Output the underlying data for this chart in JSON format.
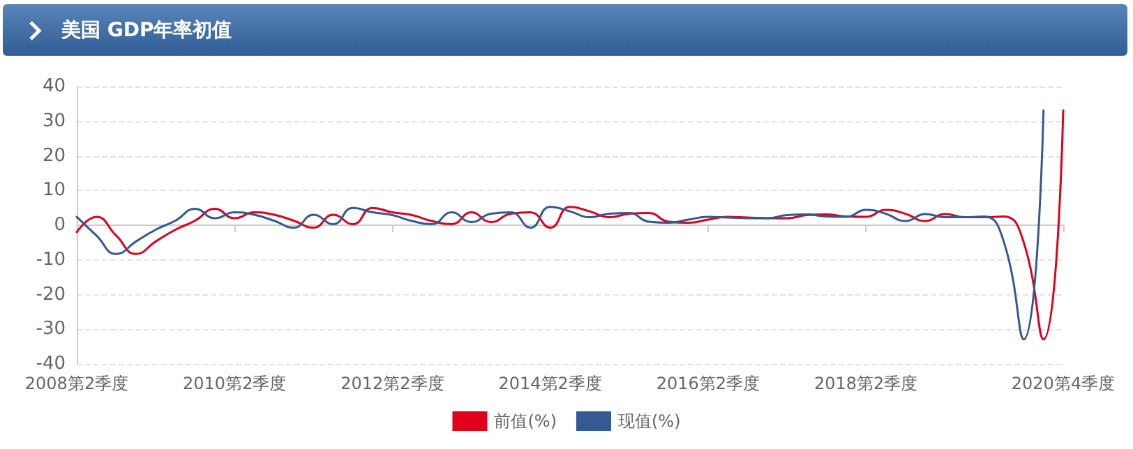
{
  "chart_data": {
    "type": "line",
    "title": "美国 GDP年率初值",
    "categories": [
      "2008第2季度",
      null,
      null,
      null,
      null,
      null,
      null,
      null,
      "2010第2季度",
      null,
      null,
      null,
      null,
      null,
      null,
      null,
      "2012第2季度",
      null,
      null,
      null,
      null,
      null,
      null,
      null,
      "2014第2季度",
      null,
      null,
      null,
      null,
      null,
      null,
      null,
      "2016第2季度",
      null,
      null,
      null,
      null,
      null,
      null,
      null,
      "2018第2季度",
      null,
      null,
      null,
      null,
      null,
      null,
      null,
      null,
      null,
      "2020第4季度"
    ],
    "series": [
      {
        "name": "前值(%)",
        "color": "#e0001b",
        "values": [
          -2,
          2.4,
          -3,
          -8.3,
          -4.7,
          -1.3,
          1.3,
          4.7,
          2,
          3.7,
          3,
          1.3,
          -0.7,
          3,
          0.3,
          5,
          3.7,
          2.9,
          1.2,
          0.3,
          3.7,
          0.9,
          3.3,
          3.7,
          -0.7,
          5.3,
          4,
          2.3,
          3.3,
          3.5,
          1,
          0.7,
          1.6,
          2.4,
          2.2,
          2,
          2,
          2.9,
          3.1,
          2.5,
          2.4,
          4.4,
          3.3,
          1.2,
          3.2,
          2.3,
          2.3,
          2.5,
          -5,
          -32.9,
          33.1
        ]
      },
      {
        "name": "现值(%)",
        "color": "#335a91",
        "values": [
          2.4,
          -3,
          -8.3,
          -4.7,
          -1.3,
          1.3,
          4.7,
          2,
          3.7,
          3,
          1.3,
          -0.7,
          3,
          0.3,
          5,
          3.7,
          2.9,
          1.2,
          0.3,
          3.7,
          0.9,
          3.3,
          3.7,
          -0.7,
          5.3,
          4,
          2.3,
          3.3,
          3.5,
          1,
          0.7,
          1.6,
          2.4,
          2.2,
          2,
          2,
          2.9,
          3.1,
          2.5,
          2.4,
          4.4,
          3.3,
          1.2,
          3.2,
          2.3,
          2.3,
          2.5,
          -5,
          -32.9,
          33.1,
          null
        ]
      }
    ],
    "ylim": [
      -40,
      40
    ],
    "yticks": [
      -40,
      -30,
      -20,
      -10,
      0,
      10,
      20,
      30,
      40
    ],
    "grid": "y",
    "legend": "bottom",
    "marker": "none",
    "line_style": "solid"
  }
}
